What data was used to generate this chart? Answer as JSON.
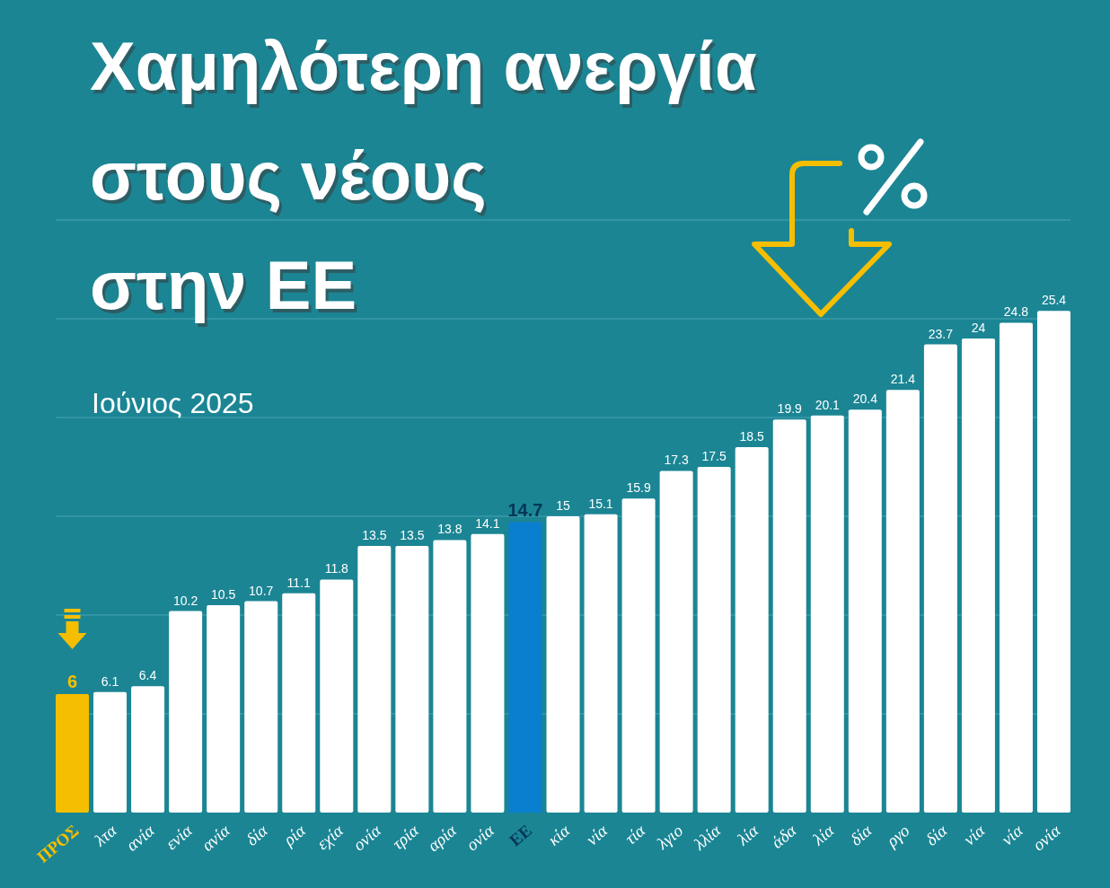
{
  "chart_data": {
    "type": "bar",
    "title": "Χαμηλότερη ανεργία\nστους νέους\nστην ΕΕ",
    "subtitle": "Ιούνιος 2025",
    "categories": [
      "ΠΡΟΣ",
      "λτα",
      "ανία",
      "ενία",
      "ανία",
      "δία",
      "ρία",
      "εχία",
      "ονία",
      "τρία",
      "αρία",
      "ονία",
      "ΕΕ",
      "κία",
      "νία",
      "τία",
      "λγιο",
      "λλία",
      "λία",
      "άδα",
      "λία",
      "δία",
      "ργο",
      "δία",
      "νία",
      "νία",
      "ονία"
    ],
    "values": [
      6,
      6.1,
      6.4,
      10.2,
      10.5,
      10.7,
      11.1,
      11.8,
      13.5,
      13.5,
      13.8,
      14.1,
      14.7,
      15,
      15.1,
      15.9,
      17.3,
      17.5,
      18.5,
      19.9,
      20.1,
      20.4,
      21.4,
      23.7,
      24,
      24.8,
      25.4
    ],
    "colors": [
      "#f6be00",
      "#ffffff",
      "#ffffff",
      "#ffffff",
      "#ffffff",
      "#ffffff",
      "#ffffff",
      "#ffffff",
      "#ffffff",
      "#ffffff",
      "#ffffff",
      "#ffffff",
      "#0a7fd0",
      "#ffffff",
      "#ffffff",
      "#ffffff",
      "#ffffff",
      "#ffffff",
      "#ffffff",
      "#ffffff",
      "#ffffff",
      "#ffffff",
      "#ffffff",
      "#ffffff",
      "#ffffff",
      "#ffffff",
      "#ffffff"
    ],
    "data_labels": true,
    "ylim": [
      0,
      30
    ],
    "yticks": [
      {
        "value": 5,
        "label": null
      },
      {
        "value": 10,
        "label": null
      },
      {
        "value": 15,
        "label": null
      },
      {
        "value": 20,
        "label": null
      },
      {
        "value": 25,
        "label": null
      },
      {
        "value": 30,
        "label": null
      }
    ],
    "grid": "y",
    "tick_labels": "x"
  }
}
